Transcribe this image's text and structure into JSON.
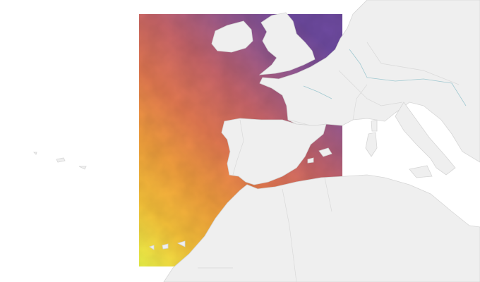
{
  "map": {
    "background_color": "#ffffff",
    "land_color": "#efefef",
    "border_color": "#d6d6d6",
    "river_color": "#9fc8d0",
    "colormap": {
      "name": "plasma",
      "stops": [
        "#eef64a",
        "#f9c43a",
        "#f4a03e",
        "#e67a52",
        "#c9656a",
        "#9a5a8e",
        "#6e4aa0"
      ]
    }
  }
}
